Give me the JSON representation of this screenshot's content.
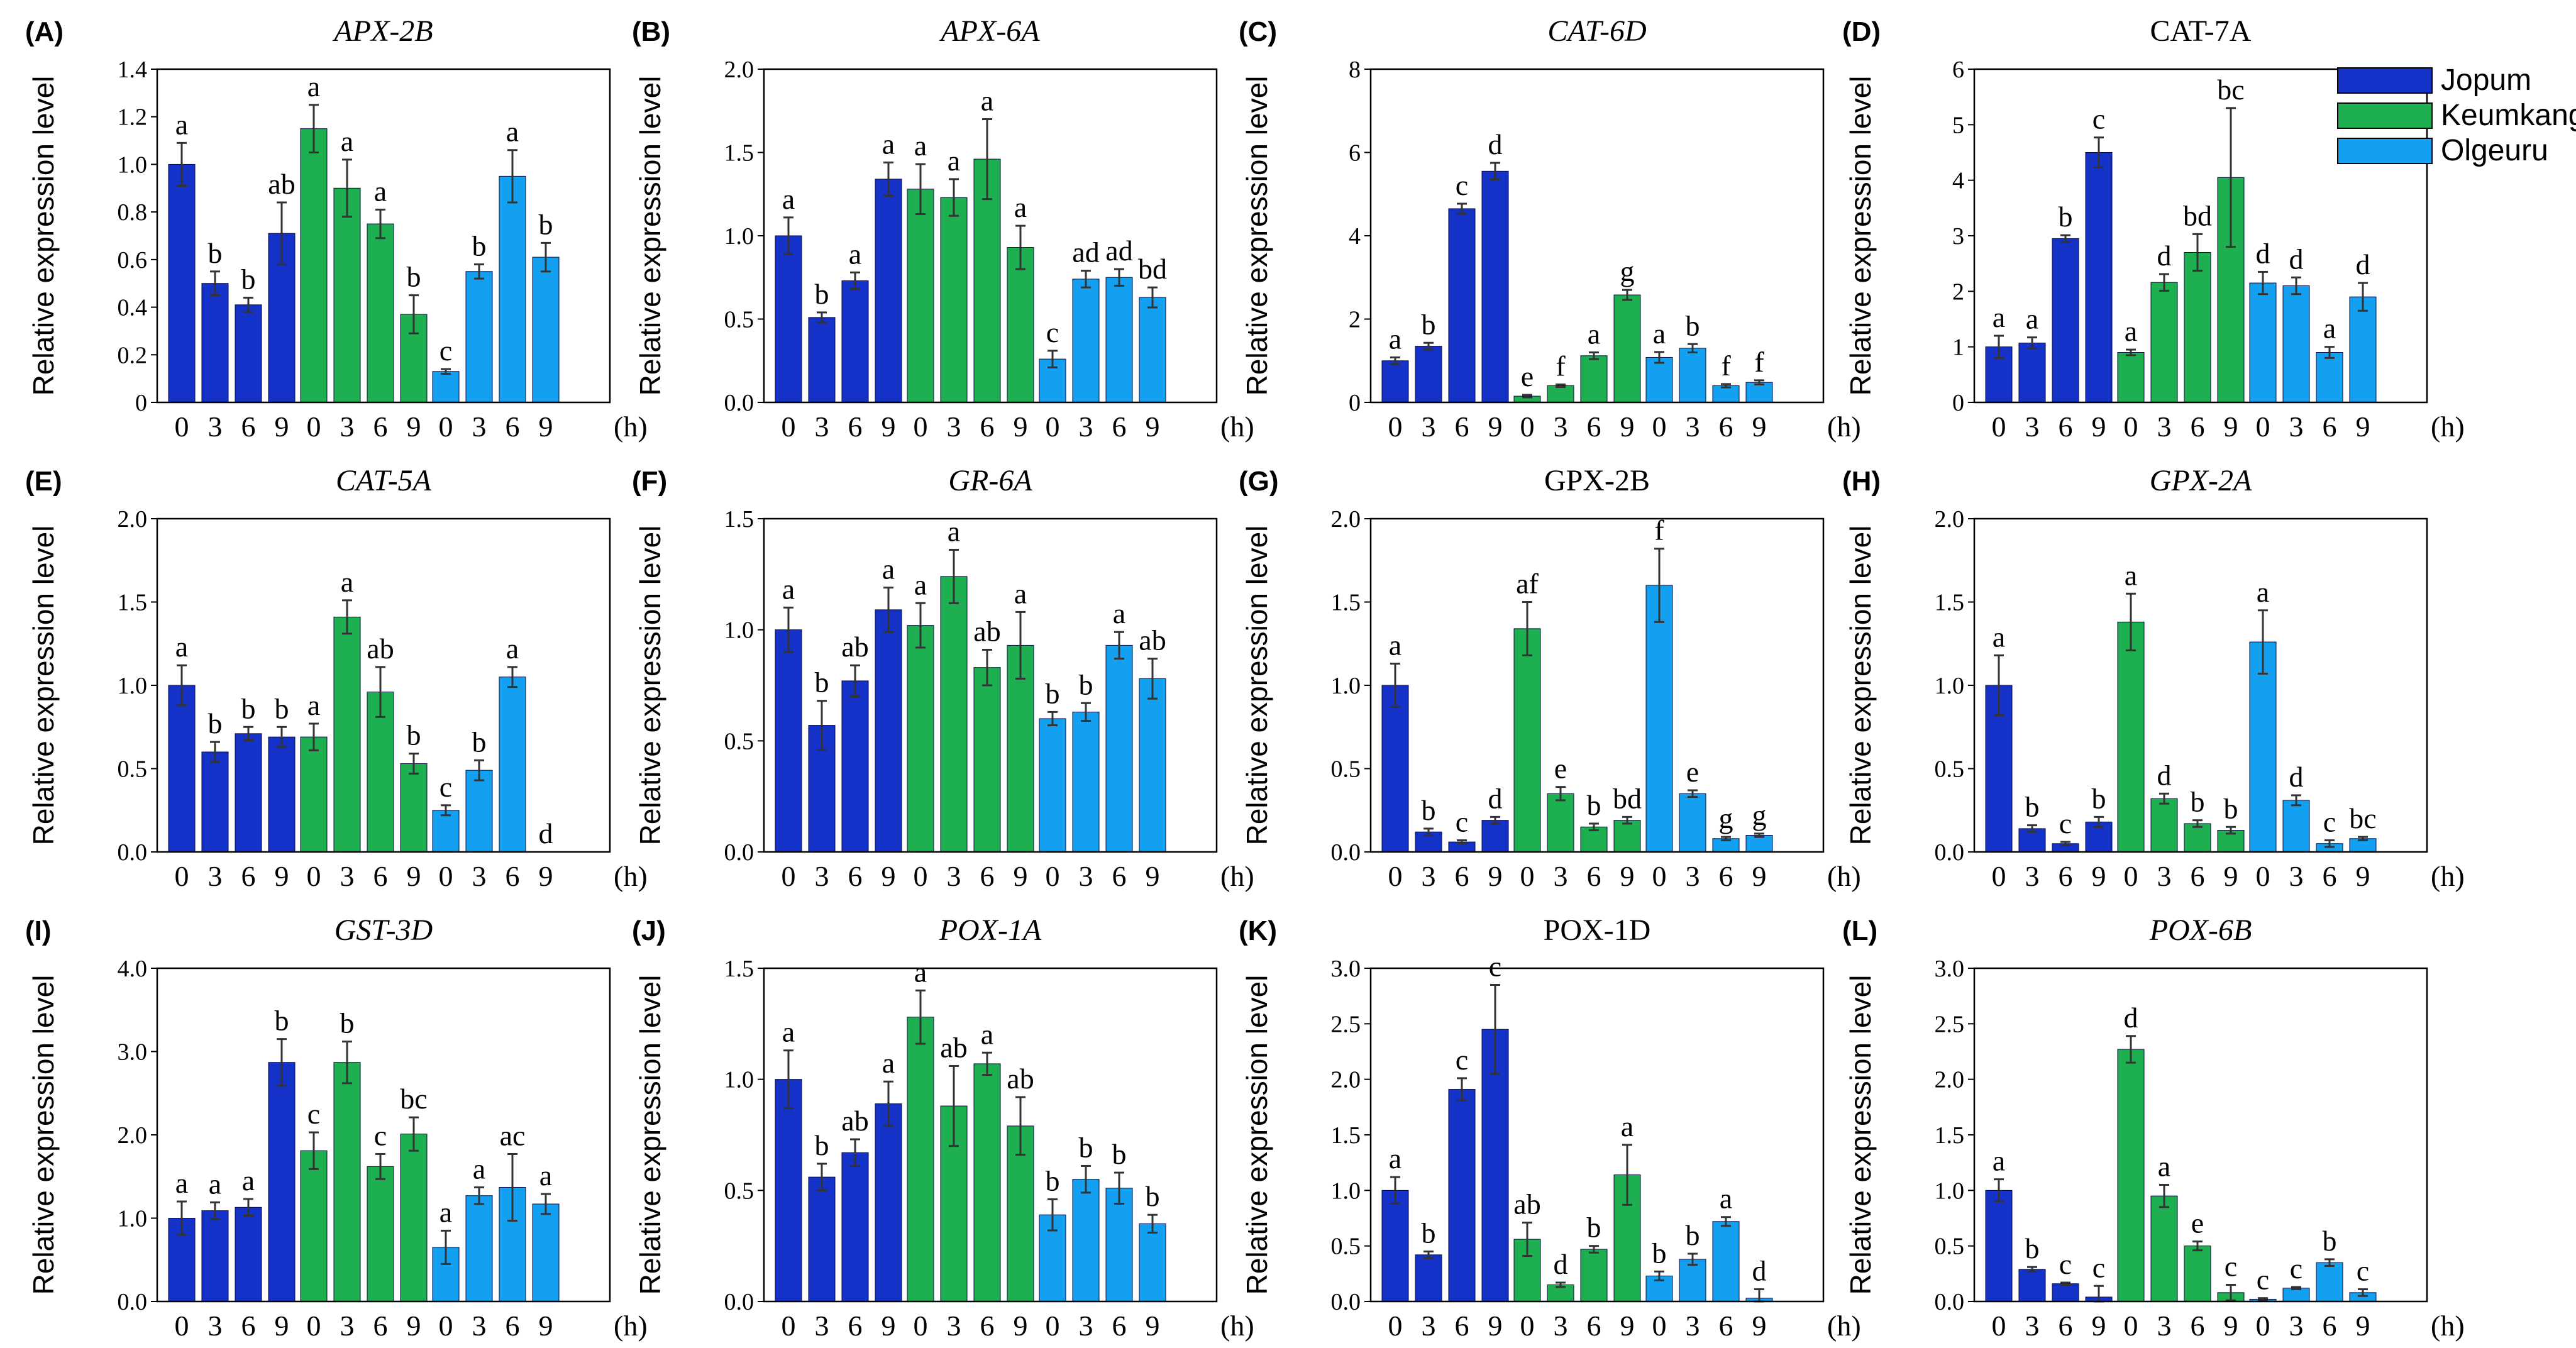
{
  "legend": [
    {
      "name": "Jopum",
      "color": "#1432C8"
    },
    {
      "name": "Keumkang",
      "color": "#1EAF50"
    },
    {
      "name": "Olgeuru",
      "color": "#14A0F0"
    }
  ],
  "x_tick_labels": [
    "0",
    "3",
    "6",
    "9"
  ],
  "x_unit": "(h)",
  "chart_data": [
    {
      "type": "bar",
      "panel": "(A)",
      "title": "APX-2B",
      "italic": true,
      "ylabel": "Relative expression level",
      "ylim": [
        0,
        1.4
      ],
      "yticks": [
        "0",
        "0.2",
        "0.4",
        "0.6",
        "0.8",
        "1.0",
        "1.2",
        "1.4"
      ],
      "categories": [
        "0",
        "3",
        "6",
        "9"
      ],
      "series": [
        {
          "name": "Jopum",
          "values": [
            1.0,
            0.5,
            0.41,
            0.71
          ],
          "errors": [
            0.09,
            0.05,
            0.03,
            0.13
          ],
          "letters": [
            "a",
            "b",
            "b",
            "ab"
          ]
        },
        {
          "name": "Keumkang",
          "values": [
            1.15,
            0.9,
            0.75,
            0.37
          ],
          "errors": [
            0.1,
            0.12,
            0.06,
            0.08
          ],
          "letters": [
            "a",
            "a",
            "a",
            "b"
          ]
        },
        {
          "name": "Olgeuru",
          "values": [
            0.13,
            0.55,
            0.95,
            0.61
          ],
          "errors": [
            0.01,
            0.03,
            0.11,
            0.06
          ],
          "letters": [
            "c",
            "b",
            "a",
            "b"
          ]
        }
      ]
    },
    {
      "type": "bar",
      "panel": "(B)",
      "title": "APX-6A",
      "italic": true,
      "ylabel": "Relative expression level",
      "ylim": [
        0,
        2.0
      ],
      "yticks": [
        "0.0",
        "0.5",
        "1.0",
        "1.5",
        "2.0"
      ],
      "categories": [
        "0",
        "3",
        "6",
        "9"
      ],
      "series": [
        {
          "name": "Jopum",
          "values": [
            1.0,
            0.51,
            0.73,
            1.34
          ],
          "errors": [
            0.11,
            0.03,
            0.05,
            0.1
          ],
          "letters": [
            "a",
            "b",
            "a",
            "a"
          ]
        },
        {
          "name": "Keumkang",
          "values": [
            1.28,
            1.23,
            1.46,
            0.93
          ],
          "errors": [
            0.15,
            0.11,
            0.24,
            0.13
          ],
          "letters": [
            "a",
            "a",
            "a",
            "a"
          ]
        },
        {
          "name": "Olgeuru",
          "values": [
            0.26,
            0.74,
            0.75,
            0.63
          ],
          "errors": [
            0.05,
            0.05,
            0.05,
            0.06
          ],
          "letters": [
            "c",
            "ad",
            "ad",
            "bd"
          ]
        }
      ]
    },
    {
      "type": "bar",
      "panel": "(C)",
      "title": "CAT-6D",
      "italic": true,
      "ylabel": "Relative expression level",
      "ylim": [
        0,
        8
      ],
      "yticks": [
        "0",
        "2",
        "4",
        "6",
        "8"
      ],
      "categories": [
        "0",
        "3",
        "6",
        "9"
      ],
      "series": [
        {
          "name": "Jopum",
          "values": [
            1.0,
            1.35,
            4.65,
            5.55
          ],
          "errors": [
            0.08,
            0.08,
            0.12,
            0.2
          ],
          "letters": [
            "a",
            "b",
            "c",
            "d"
          ]
        },
        {
          "name": "Keumkang",
          "values": [
            0.15,
            0.4,
            1.12,
            2.58
          ],
          "errors": [
            0.03,
            0.03,
            0.08,
            0.12
          ],
          "letters": [
            "e",
            "f",
            "a",
            "g"
          ]
        },
        {
          "name": "Olgeuru",
          "values": [
            1.08,
            1.3,
            0.4,
            0.48
          ],
          "errors": [
            0.13,
            0.1,
            0.04,
            0.05
          ],
          "letters": [
            "a",
            "b",
            "f",
            "f"
          ]
        }
      ]
    },
    {
      "type": "bar",
      "panel": "(D)",
      "title": "CAT-7A",
      "italic": false,
      "ylabel": "Relative expression level",
      "ylim": [
        0,
        6
      ],
      "yticks": [
        "0",
        "1",
        "2",
        "3",
        "4",
        "5",
        "6"
      ],
      "categories": [
        "0",
        "3",
        "6",
        "9"
      ],
      "series": [
        {
          "name": "Jopum",
          "values": [
            1.0,
            1.07,
            2.95,
            4.5
          ],
          "errors": [
            0.2,
            0.1,
            0.06,
            0.27
          ],
          "letters": [
            "a",
            "a",
            "b",
            "c"
          ]
        },
        {
          "name": "Keumkang",
          "values": [
            0.9,
            2.16,
            2.7,
            4.05
          ],
          "errors": [
            0.05,
            0.15,
            0.33,
            1.25
          ],
          "letters": [
            "a",
            "d",
            "bd",
            "bc"
          ]
        },
        {
          "name": "Olgeuru",
          "values": [
            2.15,
            2.1,
            0.9,
            1.9
          ],
          "errors": [
            0.2,
            0.15,
            0.1,
            0.25
          ],
          "letters": [
            "d",
            "d",
            "a",
            "d"
          ]
        }
      ]
    },
    {
      "type": "bar",
      "panel": "(E)",
      "title": "CAT-5A",
      "italic": true,
      "ylabel": "Relative expression level",
      "ylim": [
        0,
        2.0
      ],
      "yticks": [
        "0.0",
        "0.5",
        "1.0",
        "1.5",
        "2.0"
      ],
      "categories": [
        "0",
        "3",
        "6",
        "9"
      ],
      "series": [
        {
          "name": "Jopum",
          "values": [
            1.0,
            0.6,
            0.71,
            0.69
          ],
          "errors": [
            0.12,
            0.06,
            0.04,
            0.06
          ],
          "letters": [
            "a",
            "b",
            "b",
            "b"
          ]
        },
        {
          "name": "Keumkang",
          "values": [
            0.69,
            1.41,
            0.96,
            0.53
          ],
          "errors": [
            0.08,
            0.1,
            0.15,
            0.06
          ],
          "letters": [
            "a",
            "a",
            "ab",
            "b"
          ]
        },
        {
          "name": "Olgeuru",
          "values": [
            0.25,
            0.49,
            1.05,
            0.0
          ],
          "errors": [
            0.03,
            0.06,
            0.06,
            0.0
          ],
          "letters": [
            "c",
            "b",
            "a",
            "d"
          ]
        }
      ]
    },
    {
      "type": "bar",
      "panel": "(F)",
      "title": "GR-6A",
      "italic": true,
      "ylabel": "Relative expression level",
      "ylim": [
        0,
        1.5
      ],
      "yticks": [
        "0.0",
        "0.5",
        "1.0",
        "1.5"
      ],
      "categories": [
        "0",
        "3",
        "6",
        "9"
      ],
      "series": [
        {
          "name": "Jopum",
          "values": [
            1.0,
            0.57,
            0.77,
            1.09
          ],
          "errors": [
            0.1,
            0.11,
            0.07,
            0.1
          ],
          "letters": [
            "a",
            "b",
            "ab",
            "a"
          ]
        },
        {
          "name": "Keumkang",
          "values": [
            1.02,
            1.24,
            0.83,
            0.93
          ],
          "errors": [
            0.1,
            0.12,
            0.08,
            0.15
          ],
          "letters": [
            "a",
            "a",
            "ab",
            "a"
          ]
        },
        {
          "name": "Olgeuru",
          "values": [
            0.6,
            0.63,
            0.93,
            0.78
          ],
          "errors": [
            0.03,
            0.04,
            0.06,
            0.09
          ],
          "letters": [
            "b",
            "b",
            "a",
            "ab"
          ]
        }
      ]
    },
    {
      "type": "bar",
      "panel": "(G)",
      "title": "GPX-2B",
      "italic": false,
      "ylabel": "Relative expression level",
      "ylim": [
        0,
        2.0
      ],
      "yticks": [
        "0.0",
        "0.5",
        "1.0",
        "1.5",
        "2.0"
      ],
      "categories": [
        "0",
        "3",
        "6",
        "9"
      ],
      "series": [
        {
          "name": "Jopum",
          "values": [
            1.0,
            0.12,
            0.06,
            0.19
          ],
          "errors": [
            0.13,
            0.02,
            0.01,
            0.02
          ],
          "letters": [
            "a",
            "b",
            "c",
            "d"
          ]
        },
        {
          "name": "Keumkang",
          "values": [
            1.34,
            0.35,
            0.15,
            0.19
          ],
          "errors": [
            0.16,
            0.04,
            0.02,
            0.02
          ],
          "letters": [
            "af",
            "e",
            "b",
            "bd"
          ]
        },
        {
          "name": "Olgeuru",
          "values": [
            1.6,
            0.35,
            0.08,
            0.1
          ],
          "errors": [
            0.22,
            0.02,
            0.01,
            0.01
          ],
          "letters": [
            "f",
            "e",
            "g",
            "g"
          ]
        }
      ]
    },
    {
      "type": "bar",
      "panel": "(H)",
      "title": "GPX-2A",
      "italic": true,
      "ylabel": "Relative expression level",
      "ylim": [
        0,
        2.0
      ],
      "yticks": [
        "0.0",
        "0.5",
        "1.0",
        "1.5",
        "2.0"
      ],
      "categories": [
        "0",
        "3",
        "6",
        "9"
      ],
      "series": [
        {
          "name": "Jopum",
          "values": [
            1.0,
            0.14,
            0.05,
            0.18
          ],
          "errors": [
            0.18,
            0.02,
            0.01,
            0.03
          ],
          "letters": [
            "a",
            "b",
            "c",
            "b"
          ]
        },
        {
          "name": "Keumkang",
          "values": [
            1.38,
            0.32,
            0.17,
            0.13
          ],
          "errors": [
            0.17,
            0.03,
            0.02,
            0.02
          ],
          "letters": [
            "a",
            "d",
            "b",
            "b"
          ]
        },
        {
          "name": "Olgeuru",
          "values": [
            1.26,
            0.31,
            0.05,
            0.08
          ],
          "errors": [
            0.19,
            0.03,
            0.02,
            0.01
          ],
          "letters": [
            "a",
            "d",
            "c",
            "bc"
          ]
        }
      ]
    },
    {
      "type": "bar",
      "panel": "(I)",
      "title": "GST-3D",
      "italic": true,
      "ylabel": "Relative expression level",
      "ylim": [
        0,
        4.0
      ],
      "yticks": [
        "0.0",
        "1.0",
        "2.0",
        "3.0",
        "4.0"
      ],
      "categories": [
        "0",
        "3",
        "6",
        "9"
      ],
      "series": [
        {
          "name": "Jopum",
          "values": [
            1.0,
            1.09,
            1.13,
            2.87
          ],
          "errors": [
            0.2,
            0.1,
            0.1,
            0.28
          ],
          "letters": [
            "a",
            "a",
            "a",
            "b"
          ]
        },
        {
          "name": "Keumkang",
          "values": [
            1.81,
            2.87,
            1.62,
            2.01
          ],
          "errors": [
            0.22,
            0.25,
            0.15,
            0.2
          ],
          "letters": [
            "c",
            "b",
            "c",
            "bc"
          ]
        },
        {
          "name": "Olgeuru",
          "values": [
            0.65,
            1.27,
            1.37,
            1.17
          ],
          "errors": [
            0.2,
            0.1,
            0.4,
            0.12
          ],
          "letters": [
            "a",
            "a",
            "ac",
            "a"
          ]
        }
      ]
    },
    {
      "type": "bar",
      "panel": "(J)",
      "title": "POX-1A",
      "italic": true,
      "ylabel": "Relative expression level",
      "ylim": [
        0,
        1.5
      ],
      "yticks": [
        "0.0",
        "0.5",
        "1.0",
        "1.5"
      ],
      "categories": [
        "0",
        "3",
        "6",
        "9"
      ],
      "series": [
        {
          "name": "Jopum",
          "values": [
            1.0,
            0.56,
            0.67,
            0.89
          ],
          "errors": [
            0.13,
            0.06,
            0.06,
            0.1
          ],
          "letters": [
            "a",
            "b",
            "ab",
            "a"
          ]
        },
        {
          "name": "Keumkang",
          "values": [
            1.28,
            0.88,
            1.07,
            0.79
          ],
          "errors": [
            0.12,
            0.18,
            0.05,
            0.13
          ],
          "letters": [
            "a",
            "ab",
            "a",
            "ab"
          ]
        },
        {
          "name": "Olgeuru",
          "values": [
            0.39,
            0.55,
            0.51,
            0.35
          ],
          "errors": [
            0.07,
            0.06,
            0.07,
            0.04
          ],
          "letters": [
            "b",
            "b",
            "b",
            "b"
          ]
        }
      ]
    },
    {
      "type": "bar",
      "panel": "(K)",
      "title": "POX-1D",
      "italic": false,
      "ylabel": "Relative expression level",
      "ylim": [
        0,
        3.0
      ],
      "yticks": [
        "0.0",
        "0.5",
        "1.0",
        "1.5",
        "2.0",
        "2.5",
        "3.0"
      ],
      "categories": [
        "0",
        "3",
        "6",
        "9"
      ],
      "series": [
        {
          "name": "Jopum",
          "values": [
            1.0,
            0.42,
            1.91,
            2.45
          ],
          "errors": [
            0.12,
            0.03,
            0.1,
            0.4
          ],
          "letters": [
            "a",
            "b",
            "c",
            "c"
          ]
        },
        {
          "name": "Keumkang",
          "values": [
            0.56,
            0.15,
            0.47,
            1.14
          ],
          "errors": [
            0.15,
            0.02,
            0.03,
            0.27
          ],
          "letters": [
            "ab",
            "d",
            "b",
            "a"
          ]
        },
        {
          "name": "Olgeuru",
          "values": [
            0.23,
            0.38,
            0.72,
            0.03
          ],
          "errors": [
            0.04,
            0.05,
            0.04,
            0.08
          ],
          "letters": [
            "b",
            "b",
            "a",
            "d"
          ]
        }
      ]
    },
    {
      "type": "bar",
      "panel": "(L)",
      "title": "POX-6B",
      "italic": true,
      "ylabel": "Relative expression level",
      "ylim": [
        0,
        3.0
      ],
      "yticks": [
        "0.0",
        "0.5",
        "1.0",
        "1.5",
        "2.0",
        "2.5",
        "3.0"
      ],
      "categories": [
        "0",
        "3",
        "6",
        "9"
      ],
      "series": [
        {
          "name": "Jopum",
          "values": [
            1.0,
            0.29,
            0.16,
            0.04
          ],
          "errors": [
            0.1,
            0.02,
            0.01,
            0.1
          ],
          "letters": [
            "a",
            "b",
            "c",
            "c"
          ]
        },
        {
          "name": "Keumkang",
          "values": [
            2.27,
            0.95,
            0.5,
            0.08
          ],
          "errors": [
            0.12,
            0.1,
            0.04,
            0.07
          ],
          "letters": [
            "d",
            "a",
            "e",
            "c"
          ]
        },
        {
          "name": "Olgeuru",
          "values": [
            0.02,
            0.12,
            0.35,
            0.08
          ],
          "errors": [
            0.01,
            0.01,
            0.03,
            0.03
          ],
          "letters": [
            "c",
            "c",
            "b",
            "c"
          ]
        }
      ]
    }
  ]
}
